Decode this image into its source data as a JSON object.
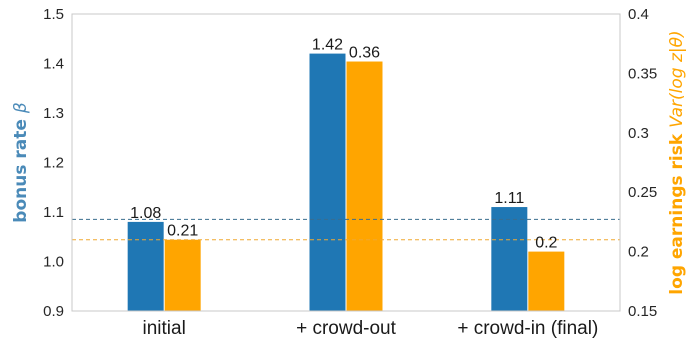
{
  "chart_data": {
    "type": "bar",
    "categories": [
      "initial",
      "+ crowd-out",
      "+ crowd-in (final)"
    ],
    "series": [
      {
        "name": "",
        "axis": "left",
        "color": "#1f77b4",
        "values": [
          1.08,
          1.42,
          1.11
        ],
        "labels": [
          "1.08",
          "1.42",
          "1.11"
        ]
      },
      {
        "name": "",
        "axis": "right",
        "color": "#ffa500",
        "values": [
          0.21,
          0.36,
          0.2
        ],
        "labels": [
          "0.21",
          "0.36",
          "0.2"
        ]
      }
    ],
    "reference_lines": [
      {
        "axis": "left",
        "value": 1.085,
        "color": "#3a6e8f",
        "style": "dashed"
      },
      {
        "axis": "right",
        "value": 0.21,
        "color": "#f0a830",
        "style": "dashed"
      }
    ],
    "left_axis": {
      "label_text": "bonus rate ",
      "label_symbol": "β",
      "color": "#4a8ab8",
      "ylim": [
        0.9,
        1.5
      ],
      "ticks": [
        0.9,
        1.0,
        1.1,
        1.2,
        1.3,
        1.4,
        1.5
      ],
      "tick_labels": [
        "0.9",
        "1.0",
        "1.1",
        "1.2",
        "1.3",
        "1.4",
        "1.5"
      ]
    },
    "right_axis": {
      "label_text": "log earnings risk ",
      "label_symbol": "Var(log z|θ)",
      "color": "#ffa500",
      "ylim": [
        0.15,
        0.4
      ],
      "ticks": [
        0.15,
        0.2,
        0.25,
        0.3,
        0.35,
        0.4
      ],
      "tick_labels": [
        "0.15",
        "0.2",
        "0.25",
        "0.3",
        "0.35",
        "0.4"
      ]
    },
    "grid": false
  }
}
